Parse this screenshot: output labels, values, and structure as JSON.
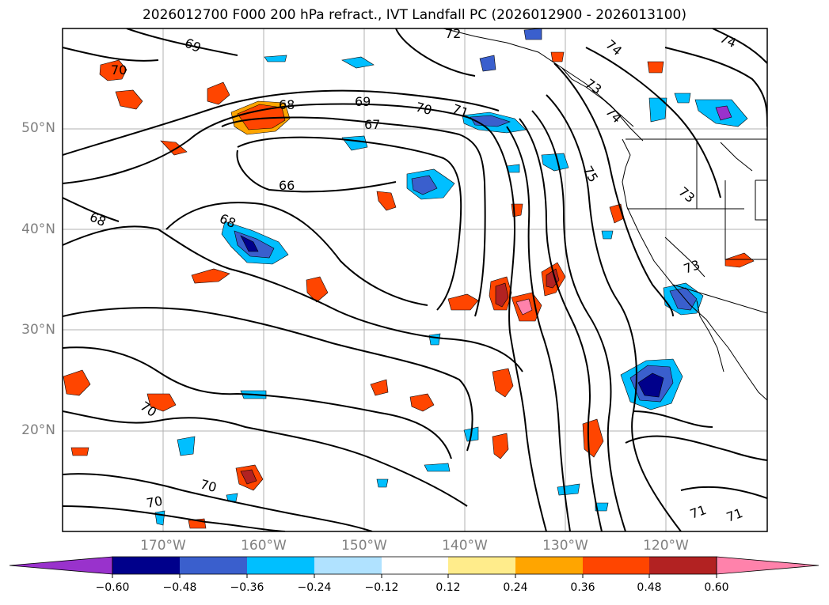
{
  "title": "2026012700 F000 200 hPa refract., IVT Landfall PC (2026012900 - 2026013100)",
  "lat_labels": [
    "50°N",
    "40°N",
    "30°N",
    "20°N"
  ],
  "lon_labels": [
    "170°W",
    "160°W",
    "150°W",
    "140°W",
    "130°W",
    "120°W"
  ],
  "contour_labels": [
    "69",
    "72",
    "74",
    "74",
    "70",
    "73",
    "68",
    "69",
    "70",
    "71",
    "74",
    "67",
    "75",
    "73",
    "66",
    "68",
    "68",
    "73",
    "70",
    "70",
    "70",
    "71",
    "71"
  ],
  "colorbar": {
    "ticks": [
      "−0.60",
      "−0.48",
      "−0.36",
      "−0.24",
      "−0.12",
      "0.12",
      "0.24",
      "0.36",
      "0.48",
      "0.60"
    ],
    "colors": [
      "#9932cc",
      "#00008b",
      "#3a5fcd",
      "#00bfff",
      "#b0e2ff",
      "#ffffff",
      "#ffec8b",
      "#ffa500",
      "#ff4500",
      "#b22222",
      "#ff82ab"
    ]
  },
  "chart_data": {
    "type": "map",
    "title": "2026012700 F000 200 hPa refract., IVT Landfall PC (2026012900 - 2026013100)",
    "lon_range": [
      -180,
      -110
    ],
    "lat_range": [
      10,
      60
    ],
    "grid": true,
    "contour_levels": [
      66,
      67,
      68,
      69,
      70,
      71,
      72,
      73,
      74,
      75
    ],
    "colorbar_levels": [
      -0.6,
      -0.48,
      -0.36,
      -0.24,
      -0.12,
      0.12,
      0.24,
      0.36,
      0.48,
      0.6
    ],
    "colorbar_extend": "both"
  }
}
